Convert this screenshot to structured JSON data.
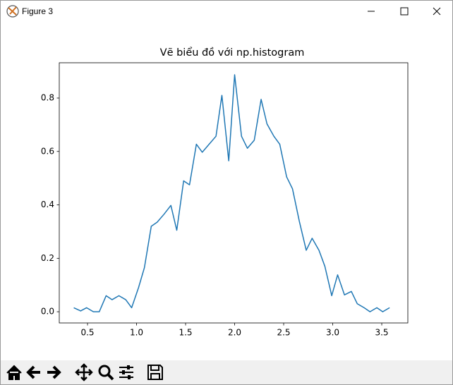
{
  "window_title": "Figure 3",
  "chart_data": {
    "type": "line",
    "title": "Vẽ biểu đồ với np.histogram",
    "x": [
      0.36,
      0.43,
      0.49,
      0.56,
      0.62,
      0.69,
      0.75,
      0.82,
      0.89,
      0.95,
      1.02,
      1.08,
      1.15,
      1.21,
      1.28,
      1.35,
      1.41,
      1.48,
      1.54,
      1.61,
      1.67,
      1.74,
      1.81,
      1.87,
      1.94,
      2.0,
      2.07,
      2.13,
      2.2,
      2.27,
      2.33,
      2.4,
      2.46,
      2.53,
      2.59,
      2.66,
      2.73,
      2.79,
      2.86,
      2.92,
      2.99,
      3.05,
      3.12,
      3.19,
      3.25,
      3.32,
      3.38,
      3.45,
      3.51,
      3.58
    ],
    "series": [
      {
        "color": "#1f77b4",
        "values": [
          0.015,
          0.003,
          0.015,
          0.0,
          0.0,
          0.06,
          0.045,
          0.06,
          0.045,
          0.015,
          0.09,
          0.165,
          0.32,
          0.335,
          0.365,
          0.398,
          0.305,
          0.49,
          0.475,
          0.627,
          0.597,
          0.627,
          0.657,
          0.81,
          0.565,
          0.887,
          0.657,
          0.612,
          0.642,
          0.795,
          0.703,
          0.657,
          0.627,
          0.505,
          0.46,
          0.338,
          0.23,
          0.275,
          0.23,
          0.17,
          0.06,
          0.138,
          0.063,
          0.076,
          0.03,
          0.015,
          0.0,
          0.015,
          0.0,
          0.015
        ]
      }
    ],
    "xlim": [
      0.212,
      3.766
    ],
    "ylim": [
      -0.042,
      0.932
    ],
    "xticks": [
      0.5,
      {
        "value": 1,
        "label": "1.0"
      },
      1.5,
      {
        "value": 2,
        "label": "2.0"
      },
      2.5,
      {
        "value": 3,
        "label": "3.0"
      },
      3.5
    ],
    "yticks": [
      {
        "value": 0,
        "label": "0.0"
      },
      0.2,
      0.4,
      0.6,
      0.8
    ],
    "grid": false
  }
}
